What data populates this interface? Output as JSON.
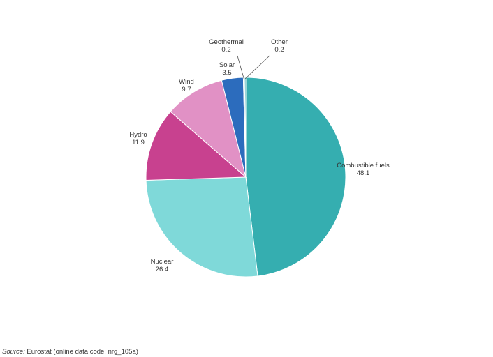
{
  "chart_data": {
    "type": "pie",
    "categories": [
      "Combustible fuels",
      "Nuclear",
      "Hydro",
      "Wind",
      "Solar",
      "Geothermal",
      "Other"
    ],
    "values": [
      48.1,
      26.4,
      11.9,
      9.7,
      3.5,
      0.2,
      0.2
    ],
    "value_labels": [
      "48.1",
      "26.4",
      "11.9",
      "9.7",
      "3.5",
      "0.2",
      "0.2"
    ],
    "start_angle_deg": 0,
    "direction": "clockwise",
    "colors": [
      "#35aeb0",
      "#7fd9d9",
      "#c8418f",
      "#e191c5",
      "#2c6cbd",
      "#2c6cbd",
      "#35aeb0"
    ],
    "title": "",
    "legend": "none"
  },
  "source": {
    "prefix": "Source:",
    "text": "Eurostat (online data code: nrg_105a)"
  }
}
